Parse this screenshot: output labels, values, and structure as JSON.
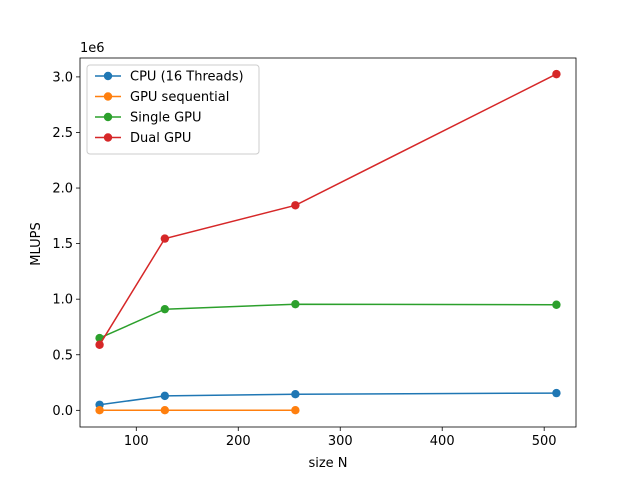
{
  "chart_data": {
    "type": "line",
    "xlabel": "size N",
    "ylabel": "MLUPS",
    "y_offset_label": "1e6",
    "xlim": [
      44.8,
      531.2
    ],
    "ylim": [
      -150000,
      3170000
    ],
    "x_ticks": [
      100,
      200,
      300,
      400,
      500
    ],
    "y_ticks": [
      0,
      500000,
      1000000,
      1500000,
      2000000,
      2500000,
      3000000
    ],
    "y_tick_labels": [
      "0.0",
      "0.5",
      "1.0",
      "1.5",
      "2.0",
      "2.5",
      "3.0"
    ],
    "legend_position": "upper-left",
    "grid": false,
    "series": [
      {
        "name": "CPU (16 Threads)",
        "color": "#1f77b4",
        "x": [
          64,
          128,
          256,
          512
        ],
        "y": [
          50000,
          130000,
          145000,
          155000
        ]
      },
      {
        "name": "GPU sequential",
        "color": "#ff7f0e",
        "x": [
          64,
          128,
          256
        ],
        "y": [
          1000,
          1000,
          1000
        ]
      },
      {
        "name": "Single GPU",
        "color": "#2ca02c",
        "x": [
          64,
          128,
          256,
          512
        ],
        "y": [
          650000,
          910000,
          955000,
          950000
        ]
      },
      {
        "name": "Dual GPU",
        "color": "#d62728",
        "x": [
          64,
          128,
          256,
          512
        ],
        "y": [
          590000,
          1545000,
          1845000,
          3025000
        ]
      }
    ]
  }
}
